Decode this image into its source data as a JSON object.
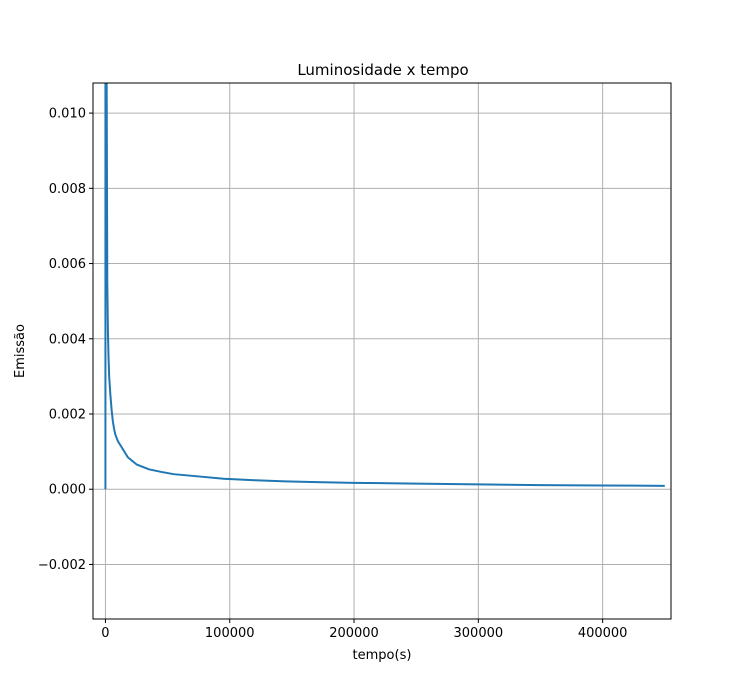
{
  "chart_data": {
    "type": "line",
    "title": "Luminosidade x tempo",
    "xlabel": "tempo(s)",
    "ylabel": "Emissão",
    "xlim": [
      -10000,
      455000
    ],
    "ylim": [
      -0.00345,
      0.0108
    ],
    "grid": true,
    "x_ticks": [
      0,
      100000,
      200000,
      300000,
      400000
    ],
    "x_tick_labels": [
      "0",
      "100000",
      "200000",
      "300000",
      "400000"
    ],
    "y_ticks": [
      -0.002,
      0.0,
      0.002,
      0.004,
      0.006,
      0.008,
      0.01
    ],
    "y_tick_labels": [
      "−0.002",
      "0.000",
      "0.002",
      "0.004",
      "0.006",
      "0.008",
      "0.010"
    ],
    "series": [
      {
        "color": "#1f77b4",
        "x": [
          0,
          0,
          1000,
          1500,
          2000,
          2500,
          3000,
          4000,
          5000,
          6000,
          7000,
          8000,
          10000,
          13000,
          18000,
          25000,
          35000,
          45000,
          55000,
          75000,
          95000,
          120000,
          145000,
          170000,
          200000,
          250000,
          300000,
          350000,
          400000,
          450000
        ],
        "y": [
          0.0,
          0.0108,
          0.0108,
          0.0055,
          0.0042,
          0.0035,
          0.003,
          0.0025,
          0.0021,
          0.0018,
          0.0016,
          0.00145,
          0.00128,
          0.00112,
          0.00085,
          0.00066,
          0.00053,
          0.00046,
          0.0004,
          0.00034,
          0.00028,
          0.00024,
          0.00021,
          0.00019,
          0.00017,
          0.00015,
          0.00013,
          0.00011,
          0.0001,
          9e-05
        ]
      }
    ]
  }
}
